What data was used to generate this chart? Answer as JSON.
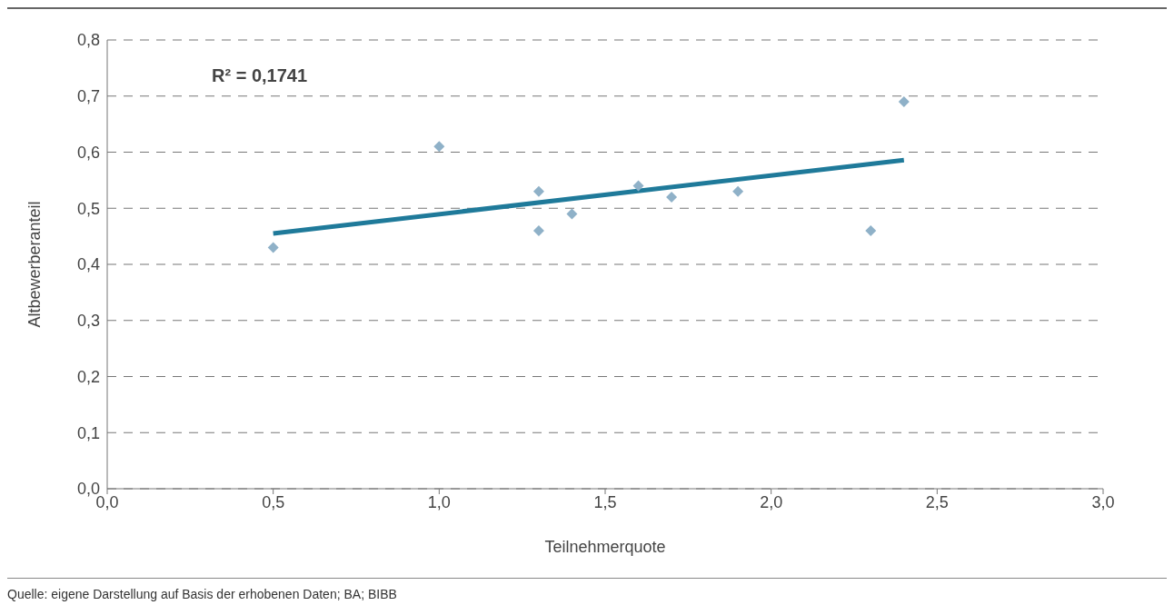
{
  "chart_data": {
    "type": "scatter",
    "xlabel": "Teilnehmerquote",
    "ylabel": "Altbewerberanteil",
    "annotations": [
      "R² = 0,1741",
      "Quelle: eigene Darstellung auf Basis der erhobenen Daten; BA; BIBB"
    ],
    "x": [
      0.5,
      1.0,
      1.3,
      1.3,
      1.4,
      1.6,
      1.7,
      1.9,
      2.3,
      2.4
    ],
    "series": [
      {
        "color": "#8fb1c8",
        "marker": "diamond",
        "values": [
          0.43,
          0.61,
          0.53,
          0.46,
          0.49,
          0.54,
          0.52,
          0.53,
          0.46,
          0.69
        ]
      },
      {
        "type": "line",
        "color": "#1f7a9a",
        "marker": "none",
        "line_style": "solid",
        "x": [
          0.5,
          2.4
        ],
        "values": [
          0.455,
          0.586
        ]
      }
    ],
    "xlim": [
      0,
      3
    ],
    "xticks": [
      {
        "value": 0,
        "label": "0,0"
      },
      {
        "value": 0.5,
        "label": "0,5"
      },
      {
        "value": 1,
        "label": "1,0"
      },
      {
        "value": 1.5,
        "label": "1,5"
      },
      {
        "value": 2,
        "label": "2,0"
      },
      {
        "value": 2.5,
        "label": "2,5"
      },
      {
        "value": 3,
        "label": "3,0"
      }
    ],
    "ylim": [
      0,
      0.8
    ],
    "yticks": [
      {
        "value": 0,
        "label": "0,0"
      },
      {
        "value": 0.1,
        "label": "0,1"
      },
      {
        "value": 0.2,
        "label": "0,2"
      },
      {
        "value": 0.3,
        "label": "0,3"
      },
      {
        "value": 0.4,
        "label": "0,4"
      },
      {
        "value": 0.5,
        "label": "0,5"
      },
      {
        "value": 0.6,
        "label": "0,6"
      },
      {
        "value": 0.7,
        "label": "0,7"
      },
      {
        "value": 0.8,
        "label": "0,8"
      }
    ],
    "grid": "y"
  }
}
